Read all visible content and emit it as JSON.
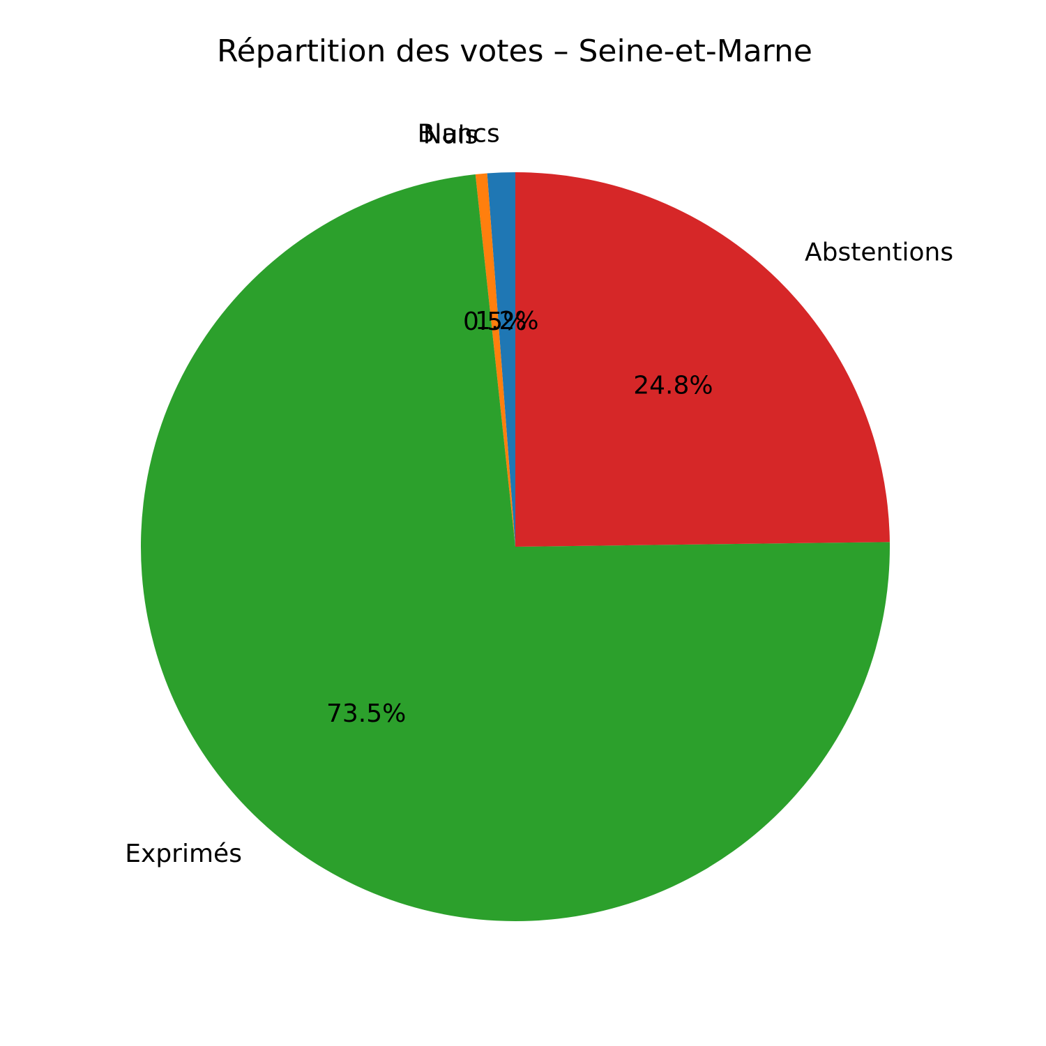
{
  "chart_data": {
    "type": "pie",
    "title": "Répartition des votes – Seine-et-Marne",
    "start_angle_deg": 90,
    "direction": "counterclockwise",
    "slices": [
      {
        "label": "Blancs",
        "value": 1.2,
        "pct_label": "1.2%",
        "color": "#1f77b4"
      },
      {
        "label": "Nuls",
        "value": 0.5,
        "pct_label": "0.5%",
        "color": "#ff7f0e"
      },
      {
        "label": "Exprimés",
        "value": 73.5,
        "pct_label": "73.5%",
        "color": "#2ca02c"
      },
      {
        "label": "Abstentions",
        "value": 24.8,
        "pct_label": "24.8%",
        "color": "#d62728"
      }
    ]
  }
}
